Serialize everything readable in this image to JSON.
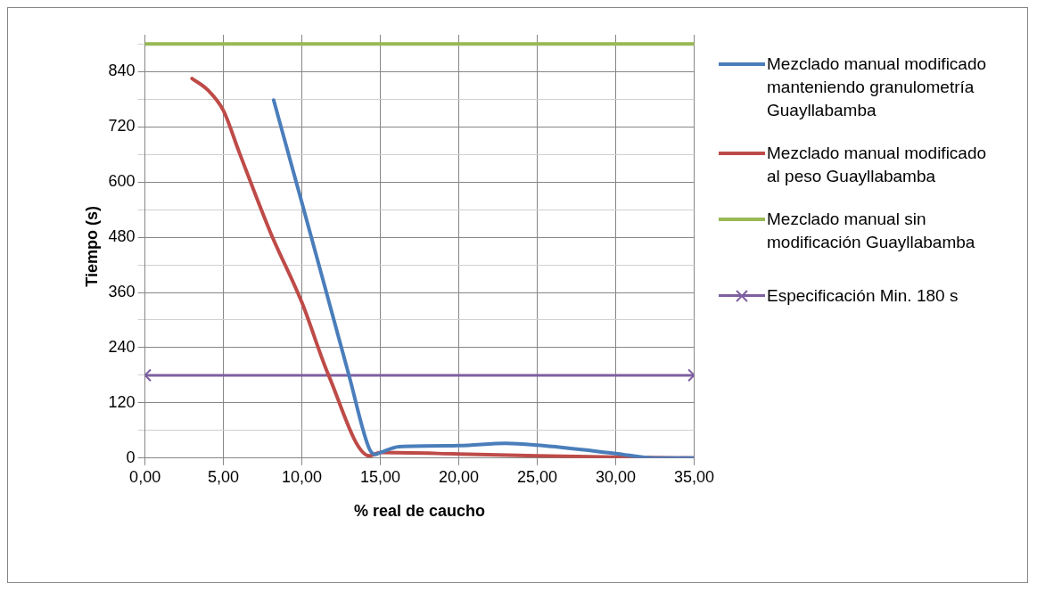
{
  "chart_data": {
    "type": "line",
    "xlabel": "% real de caucho",
    "ylabel": "Tiempo (s)",
    "xlim": [
      0,
      35
    ],
    "xticks": [
      {
        "value": 0,
        "label": "0,00"
      },
      {
        "value": 5,
        "label": "5,00"
      },
      {
        "value": 10,
        "label": "10,00"
      },
      {
        "value": 15,
        "label": "15,00"
      },
      {
        "value": 20,
        "label": "20,00"
      },
      {
        "value": 25,
        "label": "25,00"
      },
      {
        "value": 30,
        "label": "30,00"
      },
      {
        "value": 35,
        "label": "35,00"
      }
    ],
    "ylim": [
      0,
      920
    ],
    "yticks": [
      0,
      120,
      240,
      360,
      480,
      600,
      720,
      840
    ],
    "grid": true,
    "legend": "right",
    "marker": "none",
    "line_style": "solid",
    "series": [
      {
        "name": "Mezclado manual modificado manteniendo granulometría Guayllabamba",
        "color": "#4a7ebb",
        "x": [
          8.2,
          10,
          12,
          13,
          14.3,
          14.7,
          15,
          16.2,
          20,
          23,
          25,
          30,
          32.5,
          35
        ],
        "values": [
          778,
          555,
          305,
          180,
          20,
          8,
          12,
          25,
          27,
          32,
          28,
          10,
          0,
          0
        ]
      },
      {
        "name": "Mezclado manual modificado al peso Guayllabamba",
        "color": "#be4b48",
        "x": [
          3,
          4,
          5,
          6,
          8,
          10,
          11.7,
          14.3,
          15,
          20,
          25,
          30,
          35
        ],
        "values": [
          825,
          800,
          755,
          665,
          490,
          338,
          180,
          5,
          12,
          9,
          5,
          2,
          0
        ]
      },
      {
        "name": "Mezclado manual sin modificación Guayllabamba",
        "color": "#98b954",
        "x": [
          0,
          35
        ],
        "values": [
          900,
          900
        ]
      },
      {
        "name": "Especificación Min. 180 s",
        "color": "#7d60a0",
        "x": [
          0,
          35
        ],
        "values": [
          180,
          180
        ],
        "marker": "cross"
      }
    ]
  }
}
